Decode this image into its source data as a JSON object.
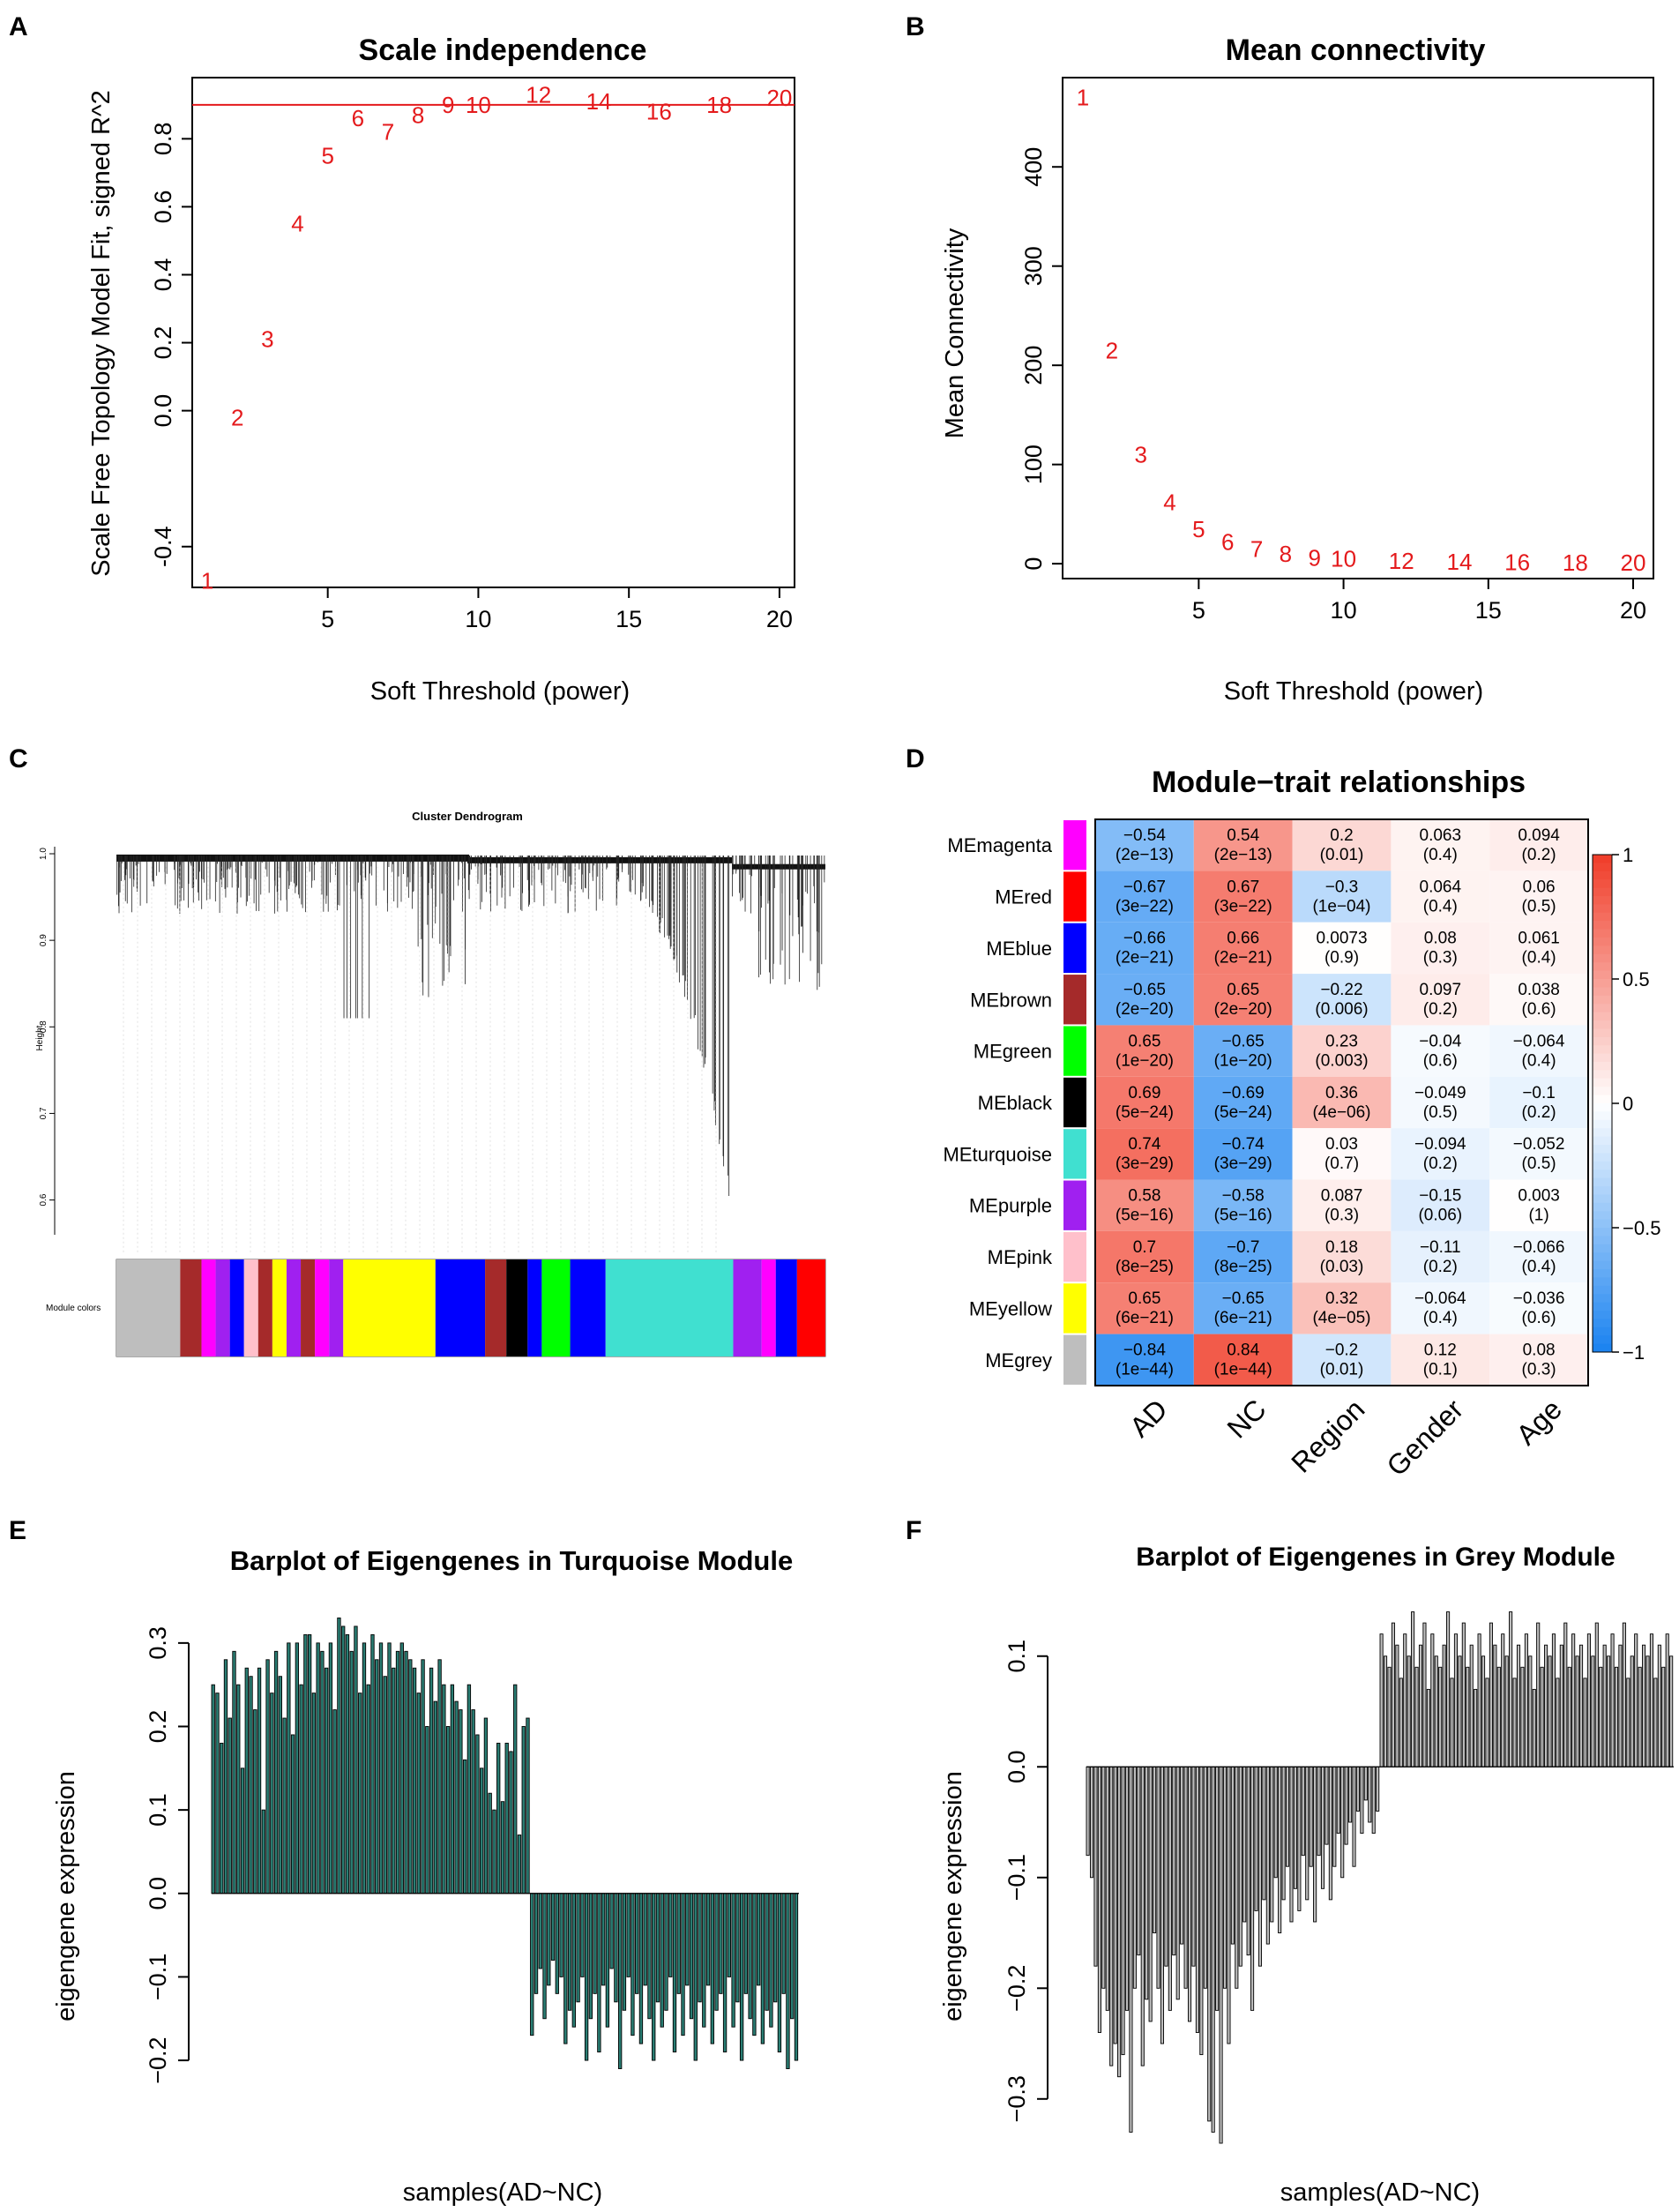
{
  "panels": {
    "A": "A",
    "B": "B",
    "C": "C",
    "D": "D",
    "E": "E",
    "F": "F"
  },
  "chart_data": [
    {
      "id": "A",
      "type": "scatter",
      "title": "Scale independence",
      "xlabel": "Soft Threshold (power)",
      "ylabel": "Scale Free Topology Model Fit, signed R^2",
      "xlim": [
        0.5,
        20.5
      ],
      "ylim": [
        -0.52,
        0.98
      ],
      "xticks": [
        5,
        10,
        15,
        20
      ],
      "yticks": [
        -0.4,
        0.0,
        0.2,
        0.4,
        0.6,
        0.8
      ],
      "ytick_labels": [
        "-0.4",
        "0.0",
        "0.2",
        "0.4",
        "0.6",
        "0.8"
      ],
      "hline": 0.9,
      "x": [
        1,
        2,
        3,
        4,
        5,
        6,
        7,
        8,
        9,
        10,
        12,
        14,
        16,
        18,
        20
      ],
      "y": [
        -0.5,
        -0.02,
        0.21,
        0.55,
        0.75,
        0.86,
        0.82,
        0.87,
        0.9,
        0.9,
        0.93,
        0.91,
        0.88,
        0.9,
        0.92
      ],
      "labels": [
        "1",
        "2",
        "3",
        "4",
        "5",
        "6",
        "7",
        "8",
        "9",
        "10",
        "12",
        "14",
        "16",
        "18",
        "20"
      ]
    },
    {
      "id": "B",
      "type": "scatter",
      "title": "Mean connectivity",
      "xlabel": "Soft Threshold (power)",
      "ylabel": "Mean Connectivity",
      "xlim": [
        0.3,
        20.7
      ],
      "ylim": [
        -15,
        490
      ],
      "xticks": [
        5,
        10,
        15,
        20
      ],
      "yticks": [
        0,
        100,
        200,
        300,
        400
      ],
      "x": [
        1,
        2,
        3,
        4,
        5,
        6,
        7,
        8,
        9,
        10,
        12,
        14,
        16,
        18,
        20
      ],
      "y": [
        470,
        215,
        110,
        62,
        35,
        22,
        15,
        10,
        6,
        5,
        3,
        2,
        1.5,
        1,
        1
      ],
      "labels": [
        "1",
        "2",
        "3",
        "4",
        "5",
        "6",
        "7",
        "8",
        "9",
        "10",
        "12",
        "14",
        "16",
        "18",
        "20"
      ]
    },
    {
      "id": "C",
      "type": "dendrogram",
      "title": "Cluster Dendrogram",
      "ylabel": "Height",
      "yticks": [
        "1.0",
        "0.9",
        "0.8",
        "0.7",
        "0.6"
      ],
      "ytick_values": [
        1.0,
        0.9,
        0.8,
        0.7,
        0.6
      ],
      "ylim": [
        0.57,
        1.0
      ],
      "colorbar_label": "Module colors",
      "module_blocks": [
        {
          "color": "#bebebe",
          "start": 0.0,
          "end": 0.09
        },
        {
          "color": "#a52a2a",
          "start": 0.09,
          "end": 0.12
        },
        {
          "color": "#ff00ff",
          "start": 0.12,
          "end": 0.14
        },
        {
          "color": "#a020f0",
          "start": 0.14,
          "end": 0.16
        },
        {
          "color": "#0000ff",
          "start": 0.16,
          "end": 0.18
        },
        {
          "color": "#ffc0cb",
          "start": 0.18,
          "end": 0.2
        },
        {
          "color": "#a52a2a",
          "start": 0.2,
          "end": 0.22
        },
        {
          "color": "#ffff00",
          "start": 0.22,
          "end": 0.24
        },
        {
          "color": "#a020f0",
          "start": 0.24,
          "end": 0.26
        },
        {
          "color": "#a52a2a",
          "start": 0.26,
          "end": 0.28
        },
        {
          "color": "#ff00ff",
          "start": 0.28,
          "end": 0.3
        },
        {
          "color": "#a020f0",
          "start": 0.3,
          "end": 0.32
        },
        {
          "color": "#ffff00",
          "start": 0.32,
          "end": 0.45
        },
        {
          "color": "#0000ff",
          "start": 0.45,
          "end": 0.52
        },
        {
          "color": "#a52a2a",
          "start": 0.52,
          "end": 0.55
        },
        {
          "color": "#000000",
          "start": 0.55,
          "end": 0.58
        },
        {
          "color": "#0000ff",
          "start": 0.58,
          "end": 0.6
        },
        {
          "color": "#00ff00",
          "start": 0.6,
          "end": 0.64
        },
        {
          "color": "#0000ff",
          "start": 0.64,
          "end": 0.69
        },
        {
          "color": "#40e0d0",
          "start": 0.69,
          "end": 0.87
        },
        {
          "color": "#a020f0",
          "start": 0.87,
          "end": 0.91
        },
        {
          "color": "#ff00ff",
          "start": 0.91,
          "end": 0.93
        },
        {
          "color": "#0000ff",
          "start": 0.93,
          "end": 0.96
        },
        {
          "color": "#ff0000",
          "start": 0.96,
          "end": 1.0
        }
      ]
    },
    {
      "id": "D",
      "type": "heatmap",
      "title": "Module−trait relationships",
      "columns": [
        "AD",
        "NC",
        "Region",
        "Gender",
        "Age"
      ],
      "rows": [
        "MEmagenta",
        "MEred",
        "MEblue",
        "MEbrown",
        "MEgreen",
        "MEblack",
        "MEturquoise",
        "MEpurple",
        "MEpink",
        "MEyellow",
        "MEgrey"
      ],
      "row_colors": [
        "#ff00ff",
        "#ff0000",
        "#0000ff",
        "#a52a2a",
        "#00ff00",
        "#000000",
        "#40e0d0",
        "#a020f0",
        "#ffc0cb",
        "#ffff00",
        "#bebebe"
      ],
      "values": [
        [
          -0.54,
          0.54,
          0.2,
          0.063,
          0.094
        ],
        [
          -0.67,
          0.67,
          -0.3,
          0.064,
          0.06
        ],
        [
          -0.66,
          0.66,
          0.0073,
          0.08,
          0.061
        ],
        [
          -0.65,
          0.65,
          -0.22,
          0.097,
          0.038
        ],
        [
          0.65,
          -0.65,
          0.23,
          -0.04,
          -0.064
        ],
        [
          0.69,
          -0.69,
          0.36,
          -0.049,
          -0.1
        ],
        [
          0.74,
          -0.74,
          0.03,
          -0.094,
          -0.052
        ],
        [
          0.58,
          -0.58,
          0.087,
          -0.15,
          0.003
        ],
        [
          0.7,
          -0.7,
          0.18,
          -0.11,
          -0.066
        ],
        [
          0.65,
          -0.65,
          0.32,
          -0.064,
          -0.036
        ],
        [
          -0.84,
          0.84,
          -0.2,
          0.12,
          0.08
        ]
      ],
      "value_labels": [
        [
          "−0.54",
          "0.54",
          "0.2",
          "0.063",
          "0.094"
        ],
        [
          "−0.67",
          "0.67",
          "−0.3",
          "0.064",
          "0.06"
        ],
        [
          "−0.66",
          "0.66",
          "0.0073",
          "0.08",
          "0.061"
        ],
        [
          "−0.65",
          "0.65",
          "−0.22",
          "0.097",
          "0.038"
        ],
        [
          "0.65",
          "−0.65",
          "0.23",
          "−0.04",
          "−0.064"
        ],
        [
          "0.69",
          "−0.69",
          "0.36",
          "−0.049",
          "−0.1"
        ],
        [
          "0.74",
          "−0.74",
          "0.03",
          "−0.094",
          "−0.052"
        ],
        [
          "0.58",
          "−0.58",
          "0.087",
          "−0.15",
          "0.003"
        ],
        [
          "0.7",
          "−0.7",
          "0.18",
          "−0.11",
          "−0.066"
        ],
        [
          "0.65",
          "−0.65",
          "0.32",
          "−0.064",
          "−0.036"
        ],
        [
          "−0.84",
          "0.84",
          "−0.2",
          "0.12",
          "0.08"
        ]
      ],
      "pvalues": [
        [
          "(2e−13)",
          "(2e−13)",
          "(0.01)",
          "(0.4)",
          "(0.2)"
        ],
        [
          "(3e−22)",
          "(3e−22)",
          "(1e−04)",
          "(0.4)",
          "(0.5)"
        ],
        [
          "(2e−21)",
          "(2e−21)",
          "(0.9)",
          "(0.3)",
          "(0.4)"
        ],
        [
          "(2e−20)",
          "(2e−20)",
          "(0.006)",
          "(0.2)",
          "(0.6)"
        ],
        [
          "(1e−20)",
          "(1e−20)",
          "(0.003)",
          "(0.6)",
          "(0.4)"
        ],
        [
          "(5e−24)",
          "(5e−24)",
          "(4e−06)",
          "(0.5)",
          "(0.2)"
        ],
        [
          "(3e−29)",
          "(3e−29)",
          "(0.7)",
          "(0.2)",
          "(0.5)"
        ],
        [
          "(5e−16)",
          "(5e−16)",
          "(0.3)",
          "(0.06)",
          "(1)"
        ],
        [
          "(8e−25)",
          "(8e−25)",
          "(0.03)",
          "(0.2)",
          "(0.4)"
        ],
        [
          "(6e−21)",
          "(6e−21)",
          "(4e−05)",
          "(0.4)",
          "(0.6)"
        ],
        [
          "(1e−44)",
          "(1e−44)",
          "(0.01)",
          "(0.1)",
          "(0.3)"
        ]
      ],
      "legend_ticks": [
        1,
        0.5,
        0,
        -0.5,
        -1
      ],
      "legend_labels": [
        "1",
        "0.5",
        "0",
        "−0.5",
        "−1"
      ],
      "legend_range": [
        -1,
        1
      ]
    },
    {
      "id": "E",
      "type": "bar",
      "title": "Barplot of Eigengenes in Turquoise Module",
      "xlabel": "samples(AD~NC)",
      "ylabel": "eigengene expression",
      "ylim": [
        -0.22,
        0.34
      ],
      "yticks": [
        -0.2,
        -0.1,
        0.0,
        0.1,
        0.2,
        0.3
      ],
      "ytick_labels": [
        "−0.2",
        "−0.1",
        "0.0",
        "0.1",
        "0.2",
        "0.3"
      ],
      "bar_color": "#2a7d73",
      "values": [
        0.25,
        0.24,
        0.18,
        0.28,
        0.21,
        0.29,
        0.25,
        0.15,
        0.27,
        0.26,
        0.22,
        0.27,
        0.1,
        0.28,
        0.24,
        0.29,
        0.26,
        0.21,
        0.3,
        0.19,
        0.3,
        0.25,
        0.31,
        0.31,
        0.24,
        0.3,
        0.29,
        0.27,
        0.3,
        0.22,
        0.33,
        0.32,
        0.31,
        0.29,
        0.32,
        0.24,
        0.3,
        0.25,
        0.31,
        0.28,
        0.3,
        0.26,
        0.3,
        0.27,
        0.29,
        0.3,
        0.29,
        0.28,
        0.27,
        0.24,
        0.28,
        0.2,
        0.27,
        0.23,
        0.28,
        0.25,
        0.2,
        0.25,
        0.23,
        0.22,
        0.16,
        0.25,
        0.22,
        0.19,
        0.15,
        0.21,
        0.12,
        0.1,
        0.18,
        0.11,
        0.18,
        0.17,
        0.25,
        0.07,
        0.2,
        0.21,
        -0.17,
        -0.12,
        -0.09,
        -0.15,
        -0.11,
        -0.08,
        -0.12,
        -0.1,
        -0.18,
        -0.14,
        -0.16,
        -0.13,
        -0.1,
        -0.2,
        -0.15,
        -0.12,
        -0.19,
        -0.11,
        -0.16,
        -0.09,
        -0.13,
        -0.21,
        -0.14,
        -0.1,
        -0.17,
        -0.12,
        -0.18,
        -0.11,
        -0.15,
        -0.2,
        -0.13,
        -0.16,
        -0.14,
        -0.1,
        -0.19,
        -0.12,
        -0.17,
        -0.11,
        -0.15,
        -0.2,
        -0.13,
        -0.16,
        -0.11,
        -0.18,
        -0.14,
        -0.12,
        -0.19,
        -0.1,
        -0.16,
        -0.13,
        -0.2,
        -0.12,
        -0.15,
        -0.17,
        -0.11,
        -0.18,
        -0.14,
        -0.16,
        -0.13,
        -0.19,
        -0.12,
        -0.21,
        -0.15,
        -0.2
      ]
    },
    {
      "id": "F",
      "type": "bar",
      "title": "Barplot of Eigengenes in Grey Module",
      "xlabel": "samples(AD~NC)",
      "ylabel": "eigengene expression",
      "ylim": [
        -0.34,
        0.15
      ],
      "yticks": [
        -0.3,
        -0.2,
        -0.1,
        0.0,
        0.1
      ],
      "ytick_labels": [
        "−0.3",
        "−0.2",
        "−0.1",
        "0.0",
        "0.1"
      ],
      "bar_color": "#bdbdbd",
      "values": [
        -0.08,
        -0.1,
        -0.18,
        -0.24,
        -0.2,
        -0.22,
        -0.27,
        -0.25,
        -0.28,
        -0.26,
        -0.22,
        -0.33,
        -0.2,
        -0.17,
        -0.27,
        -0.21,
        -0.23,
        -0.15,
        -0.2,
        -0.25,
        -0.18,
        -0.22,
        -0.17,
        -0.21,
        -0.16,
        -0.2,
        -0.23,
        -0.18,
        -0.24,
        -0.26,
        -0.2,
        -0.32,
        -0.33,
        -0.22,
        -0.34,
        -0.2,
        -0.25,
        -0.16,
        -0.2,
        -0.18,
        -0.14,
        -0.17,
        -0.22,
        -0.13,
        -0.18,
        -0.12,
        -0.16,
        -0.14,
        -0.1,
        -0.15,
        -0.12,
        -0.09,
        -0.14,
        -0.11,
        -0.13,
        -0.08,
        -0.12,
        -0.09,
        -0.14,
        -0.08,
        -0.11,
        -0.07,
        -0.12,
        -0.09,
        -0.06,
        -0.1,
        -0.07,
        -0.05,
        -0.09,
        -0.04,
        -0.06,
        -0.03,
        -0.05,
        -0.06,
        -0.04,
        0.12,
        0.1,
        0.09,
        0.13,
        0.11,
        0.08,
        0.12,
        0.1,
        0.14,
        0.09,
        0.11,
        0.13,
        0.07,
        0.12,
        0.1,
        0.09,
        0.11,
        0.14,
        0.08,
        0.12,
        0.1,
        0.13,
        0.09,
        0.11,
        0.07,
        0.12,
        0.1,
        0.08,
        0.13,
        0.11,
        0.09,
        0.12,
        0.1,
        0.14,
        0.08,
        0.11,
        0.09,
        0.12,
        0.1,
        0.07,
        0.13,
        0.09,
        0.11,
        0.1,
        0.12,
        0.08,
        0.11,
        0.13,
        0.09,
        0.12,
        0.1,
        0.11,
        0.08,
        0.12,
        0.1,
        0.13,
        0.09,
        0.11,
        0.1,
        0.12,
        0.09,
        0.11,
        0.13,
        0.08,
        0.1,
        0.12,
        0.09,
        0.11,
        0.1,
        0.12,
        0.08,
        0.11,
        0.09,
        0.12,
        0.1
      ]
    }
  ]
}
